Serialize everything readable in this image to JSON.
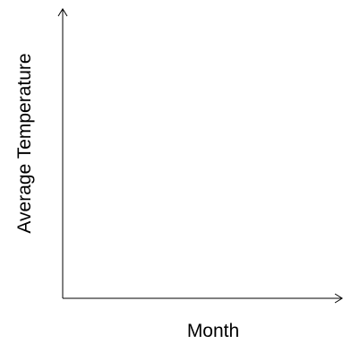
{
  "chart_data": {
    "type": "line",
    "title": "",
    "xlabel": "Month",
    "ylabel": "Average Temperature",
    "series": [],
    "grid": false,
    "legend": "none",
    "axis_color": "#000000"
  }
}
